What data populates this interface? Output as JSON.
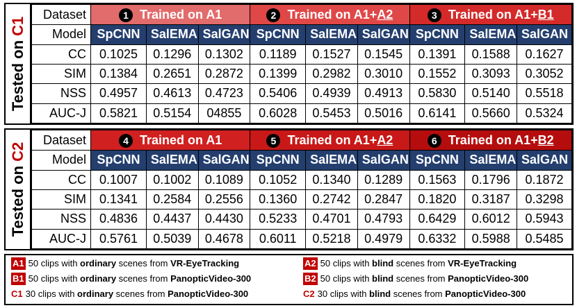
{
  "panels": [
    {
      "side_prefix": "Tested on ",
      "side_tag": "C1",
      "dataset_label": "Dataset",
      "model_label": "Model",
      "groups": [
        {
          "num": "1",
          "prefix": "Trained on A1",
          "suffix": ""
        },
        {
          "num": "2",
          "prefix": "Trained on A1+",
          "suffix": "A2"
        },
        {
          "num": "3",
          "prefix": "Trained on A1+",
          "suffix": "B1"
        }
      ],
      "models": [
        "SpCNN",
        "SalEMA",
        "SalGAN",
        "SpCNN",
        "SalEMA",
        "SalGAN",
        "SpCNN",
        "SalEMA",
        "SalGAN"
      ],
      "rows": [
        {
          "metric": "CC",
          "values": [
            "0.1025",
            "0.1296",
            "0.1302",
            "0.1189",
            "0.1527",
            "0.1545",
            "0.1391",
            "0.1588",
            "0.1627"
          ]
        },
        {
          "metric": "SIM",
          "values": [
            "0.1384",
            "0.2651",
            "0.2872",
            "0.1399",
            "0.2982",
            "0.3010",
            "0.1552",
            "0.3093",
            "0.3052"
          ]
        },
        {
          "metric": "NSS",
          "values": [
            "0.4957",
            "0.4613",
            "0.4723",
            "0.5406",
            "0.4939",
            "0.4913",
            "0.5830",
            "0.5140",
            "0.5518"
          ]
        },
        {
          "metric": "AUC-J",
          "values": [
            "0.5821",
            "0.5154",
            "04855",
            "0.6028",
            "0.5453",
            "0.5016",
            "0.6141",
            "0.5660",
            "0.5324"
          ]
        }
      ]
    },
    {
      "side_prefix": "Tested on ",
      "side_tag": "C2",
      "dataset_label": "Dataset",
      "model_label": "Model",
      "groups": [
        {
          "num": "4",
          "prefix": "Trained on A1",
          "suffix": ""
        },
        {
          "num": "5",
          "prefix": "Trained on A1+",
          "suffix": "A2"
        },
        {
          "num": "6",
          "prefix": "Trained on A1+",
          "suffix": "B2"
        }
      ],
      "models": [
        "SpCNN",
        "SalEMA",
        "SalGAN",
        "SpCNN",
        "SalEMA",
        "SalGAN",
        "SpCNN",
        "SalEMA",
        "SalGAN"
      ],
      "rows": [
        {
          "metric": "CC",
          "values": [
            "0.1007",
            "0.1002",
            "0.1089",
            "0.1052",
            "0.1340",
            "0.1289",
            "0.1563",
            "0.1796",
            "0.1872"
          ]
        },
        {
          "metric": "SIM",
          "values": [
            "0.1341",
            "0.2584",
            "0.2556",
            "0.1360",
            "0.2742",
            "0.2847",
            "0.1820",
            "0.3187",
            "0.3298"
          ]
        },
        {
          "metric": "NSS",
          "values": [
            "0.4836",
            "0.4437",
            "0.4430",
            "0.5233",
            "0.4701",
            "0.4793",
            "0.6429",
            "0.6012",
            "0.5943"
          ]
        },
        {
          "metric": "AUC-J",
          "values": [
            "0.5761",
            "0.5039",
            "0.4678",
            "0.6011",
            "0.5218",
            "0.4979",
            "0.6332",
            "0.5988",
            "0.5485"
          ]
        }
      ]
    }
  ],
  "legend": [
    {
      "tag": "A1",
      "style": "box",
      "pre": "50 clips with ",
      "kind": "ordinary",
      "mid": " scenes from ",
      "source": "VR-EyeTracking"
    },
    {
      "tag": "A2",
      "style": "box",
      "pre": "50 clips with ",
      "kind": "blind",
      "mid": " scenes from ",
      "source": "VR-EyeTracking"
    },
    {
      "tag": "B1",
      "style": "box",
      "pre": "50 clips with ",
      "kind": "ordinary",
      "mid": " scenes from ",
      "source": "PanopticVideo-300"
    },
    {
      "tag": "B2",
      "style": "box",
      "pre": "50 clips with ",
      "kind": "blind",
      "mid": " scenes from ",
      "source": "PanopticVideo-300"
    },
    {
      "tag": "C1",
      "style": "text",
      "pre": "30 clips with ",
      "kind": "ordinary",
      "mid": " scenes from ",
      "source": "PanopticVideo-300"
    },
    {
      "tag": "C2",
      "style": "text",
      "pre": "30 clips with ",
      "kind": "blind",
      "mid": " scenes from ",
      "source": "PanopticVideo-300"
    }
  ]
}
